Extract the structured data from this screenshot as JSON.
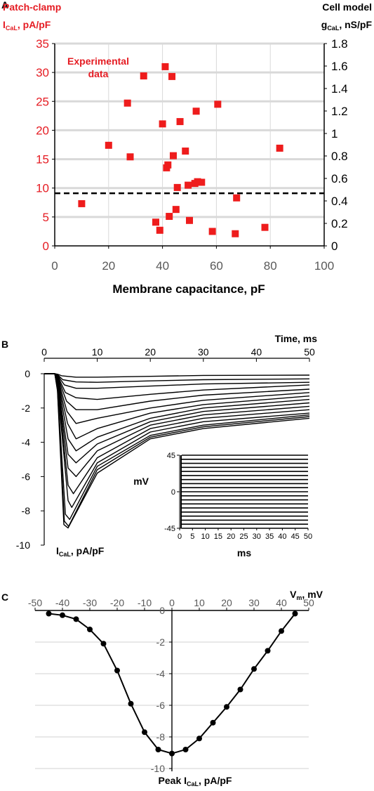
{
  "figure": {
    "panel_labels": [
      "A",
      "B",
      "C"
    ]
  },
  "chart_data": [
    {
      "panel": "A",
      "type": "scatter",
      "left_axis_title": [
        "Patch-clamp",
        "I",
        "CaL",
        ", pA/pF"
      ],
      "right_axis_title": [
        "Cell model",
        "g",
        "CaL",
        ", nS/pF"
      ],
      "xlabel": "Membrane capacitance, pF",
      "annotation": [
        "Experimental",
        "data"
      ],
      "xlim": [
        0,
        100
      ],
      "ylim": [
        0,
        35
      ],
      "y2lim": [
        0,
        1.8
      ],
      "x_ticks": [
        "0",
        "20",
        "40",
        "60",
        "80",
        "100"
      ],
      "y_ticks": [
        "0",
        "5",
        "10",
        "15",
        "20",
        "25",
        "30",
        "35"
      ],
      "y2_ticks": [
        "0",
        "0.2",
        "0.4",
        "0.6",
        "0.8",
        "1",
        "1.2",
        "1.4",
        "1.6",
        "1.8"
      ],
      "grid": "horizontal",
      "marker_color": "#ee1c1c",
      "accent_color": "#e51c23",
      "reference_line": {
        "y": 9.1,
        "style": "dashed"
      },
      "points": [
        {
          "x": 10,
          "y": 7.3
        },
        {
          "x": 20,
          "y": 17.4
        },
        {
          "x": 27,
          "y": 24.7
        },
        {
          "x": 28,
          "y": 15.4
        },
        {
          "x": 33,
          "y": 29.4
        },
        {
          "x": 37.5,
          "y": 4.1
        },
        {
          "x": 39,
          "y": 2.7
        },
        {
          "x": 40,
          "y": 21.1
        },
        {
          "x": 41,
          "y": 31.0
        },
        {
          "x": 41.5,
          "y": 13.5
        },
        {
          "x": 42,
          "y": 14.0
        },
        {
          "x": 42.5,
          "y": 5.1
        },
        {
          "x": 43.5,
          "y": 29.3
        },
        {
          "x": 44,
          "y": 15.6
        },
        {
          "x": 45,
          "y": 6.3
        },
        {
          "x": 45.5,
          "y": 10.1
        },
        {
          "x": 46.5,
          "y": 21.5
        },
        {
          "x": 48.5,
          "y": 16.4
        },
        {
          "x": 49.5,
          "y": 10.5
        },
        {
          "x": 50,
          "y": 4.4
        },
        {
          "x": 52,
          "y": 10.8
        },
        {
          "x": 52.5,
          "y": 23.3
        },
        {
          "x": 53,
          "y": 11.1
        },
        {
          "x": 54.5,
          "y": 11.0
        },
        {
          "x": 58.5,
          "y": 2.5
        },
        {
          "x": 60.5,
          "y": 24.5
        },
        {
          "x": 67,
          "y": 2.1
        },
        {
          "x": 67.5,
          "y": 8.3
        },
        {
          "x": 78,
          "y": 3.2
        },
        {
          "x": 83.5,
          "y": 16.9
        }
      ]
    },
    {
      "panel": "B",
      "type": "line",
      "xlabel": "Time, ms",
      "ylabel": [
        "I",
        "CaL",
        ", pA/pF"
      ],
      "xlim": [
        0,
        50
      ],
      "ylim": [
        -10,
        0
      ],
      "x_ticks": [
        "0",
        "10",
        "20",
        "30",
        "40",
        "50"
      ],
      "y_ticks": [
        "0",
        "-2",
        "-4",
        "-6",
        "-8",
        "-10"
      ],
      "series": [
        {
          "values": [
            [
              2,
              0
            ],
            [
              2.5,
              -0.03
            ],
            [
              3.3,
              -0.12
            ],
            [
              6,
              -0.2
            ],
            [
              10,
              -0.2
            ],
            [
              20,
              -0.15
            ],
            [
              30,
              -0.1
            ],
            [
              50,
              -0.08
            ]
          ]
        },
        {
          "values": [
            [
              2,
              0
            ],
            [
              2.5,
              -0.05
            ],
            [
              3.5,
              -0.35
            ],
            [
              6,
              -0.48
            ],
            [
              10,
              -0.5
            ],
            [
              20,
              -0.42
            ],
            [
              30,
              -0.35
            ],
            [
              50,
              -0.3
            ]
          ]
        },
        {
          "values": [
            [
              2,
              0
            ],
            [
              2.5,
              -0.08
            ],
            [
              3.8,
              -0.65
            ],
            [
              6,
              -0.85
            ],
            [
              10,
              -0.85
            ],
            [
              20,
              -0.72
            ],
            [
              30,
              -0.6
            ],
            [
              50,
              -0.5
            ]
          ]
        },
        {
          "values": [
            [
              2,
              0
            ],
            [
              2.5,
              -0.1
            ],
            [
              4,
              -1.1
            ],
            [
              6,
              -1.4
            ],
            [
              10,
              -1.5
            ],
            [
              20,
              -1.2
            ],
            [
              30,
              -0.95
            ],
            [
              50,
              -0.65
            ]
          ]
        },
        {
          "values": [
            [
              2,
              0
            ],
            [
              2.5,
              -0.15
            ],
            [
              4.2,
              -1.6
            ],
            [
              6,
              -2.1
            ],
            [
              10,
              -2.1
            ],
            [
              20,
              -1.6
            ],
            [
              30,
              -1.25
            ],
            [
              50,
              -0.9
            ]
          ]
        },
        {
          "values": [
            [
              2,
              0
            ],
            [
              2.5,
              -0.2
            ],
            [
              4.3,
              -2.2
            ],
            [
              6,
              -2.9
            ],
            [
              10,
              -2.6
            ],
            [
              20,
              -2.0
            ],
            [
              30,
              -1.55
            ],
            [
              50,
              -1.1
            ]
          ]
        },
        {
          "values": [
            [
              2,
              0
            ],
            [
              2.5,
              -0.25
            ],
            [
              4.4,
              -2.9
            ],
            [
              6,
              -3.8
            ],
            [
              10,
              -3.2
            ],
            [
              20,
              -2.3
            ],
            [
              30,
              -1.8
            ],
            [
              50,
              -1.3
            ]
          ]
        },
        {
          "values": [
            [
              2,
              0
            ],
            [
              2.5,
              -0.3
            ],
            [
              4.5,
              -3.8
            ],
            [
              6,
              -4.5
            ],
            [
              10,
              -3.7
            ],
            [
              20,
              -2.6
            ],
            [
              30,
              -2.0
            ],
            [
              50,
              -1.5
            ]
          ]
        },
        {
          "values": [
            [
              2,
              0
            ],
            [
              2.5,
              -0.4
            ],
            [
              4.5,
              -4.7
            ],
            [
              6,
              -5.2
            ],
            [
              10,
              -4.1
            ],
            [
              20,
              -2.8
            ],
            [
              30,
              -2.2
            ],
            [
              50,
              -1.7
            ]
          ]
        },
        {
          "values": [
            [
              2,
              0
            ],
            [
              2.5,
              -0.5
            ],
            [
              4.5,
              -5.5
            ],
            [
              6,
              -6.0
            ],
            [
              10,
              -4.5
            ],
            [
              20,
              -3.0
            ],
            [
              30,
              -2.4
            ],
            [
              50,
              -1.9
            ]
          ]
        },
        {
          "values": [
            [
              2,
              0
            ],
            [
              2.5,
              -0.6
            ],
            [
              4.5,
              -6.5
            ],
            [
              5.5,
              -7.0
            ],
            [
              10,
              -4.9
            ],
            [
              20,
              -3.2
            ],
            [
              30,
              -2.6
            ],
            [
              50,
              -2.1
            ]
          ]
        },
        {
          "values": [
            [
              2,
              0
            ],
            [
              2.5,
              -0.7
            ],
            [
              4.5,
              -7.4
            ],
            [
              5.2,
              -7.8
            ],
            [
              10,
              -5.2
            ],
            [
              20,
              -3.4
            ],
            [
              30,
              -2.8
            ],
            [
              50,
              -2.3
            ]
          ]
        },
        {
          "values": [
            [
              2,
              0
            ],
            [
              2.5,
              -0.8
            ],
            [
              4,
              -8.2
            ],
            [
              4.8,
              -8.5
            ],
            [
              10,
              -5.4
            ],
            [
              20,
              -3.6
            ],
            [
              30,
              -3.0
            ],
            [
              50,
              -2.4
            ]
          ]
        },
        {
          "values": [
            [
              2,
              0
            ],
            [
              2.5,
              -0.9
            ],
            [
              3.8,
              -8.6
            ],
            [
              4.6,
              -8.9
            ],
            [
              10,
              -5.6
            ],
            [
              20,
              -3.7
            ],
            [
              30,
              -3.1
            ],
            [
              50,
              -2.5
            ]
          ]
        },
        {
          "values": [
            [
              2,
              0
            ],
            [
              2.5,
              -1.0
            ],
            [
              3.7,
              -8.8
            ],
            [
              4.5,
              -9.0
            ],
            [
              10,
              -5.8
            ],
            [
              20,
              -3.8
            ],
            [
              30,
              -3.2
            ],
            [
              50,
              -2.6
            ]
          ]
        }
      ],
      "inset": {
        "type": "line",
        "xlabel": "ms",
        "ylabel": "mV",
        "xlim": [
          0,
          50
        ],
        "ylim": [
          -45,
          45
        ],
        "x_ticks": [
          "0",
          "5",
          "10",
          "15",
          "20",
          "25",
          "30",
          "35",
          "40",
          "45",
          "50"
        ],
        "y_ticks": [
          "45",
          "0",
          "-45"
        ],
        "protocol": {
          "hold": 0,
          "steps_from": -45,
          "steps_to": 45,
          "step": 5,
          "step_start": 0,
          "step_end": 50
        }
      }
    },
    {
      "panel": "C",
      "type": "line",
      "xlabel": [
        "V",
        "m",
        ", mV"
      ],
      "ylabel": [
        "Peak I",
        "CaL",
        ", pA/pF"
      ],
      "xlim": [
        -50,
        50
      ],
      "ylim": [
        -10,
        0
      ],
      "x_ticks": [
        "-50",
        "-40",
        "-30",
        "-20",
        "-10",
        "0",
        "10",
        "20",
        "30",
        "40",
        "50"
      ],
      "y_ticks": [
        "0",
        "-2",
        "-4",
        "-6",
        "-8",
        "-10"
      ],
      "grid": "horizontal",
      "series": [
        {
          "x": [
            -45,
            -40,
            -35,
            -30,
            -25,
            -20,
            -15,
            -10,
            -5,
            0,
            5,
            10,
            15,
            20,
            25,
            30,
            35,
            40,
            45
          ],
          "y": [
            -0.2,
            -0.3,
            -0.55,
            -1.2,
            -2.1,
            -3.8,
            -5.9,
            -7.7,
            -8.8,
            -9.05,
            -8.8,
            -8.1,
            -7.1,
            -6.1,
            -5.0,
            -3.7,
            -2.55,
            -1.3,
            -0.2
          ]
        }
      ]
    }
  ]
}
